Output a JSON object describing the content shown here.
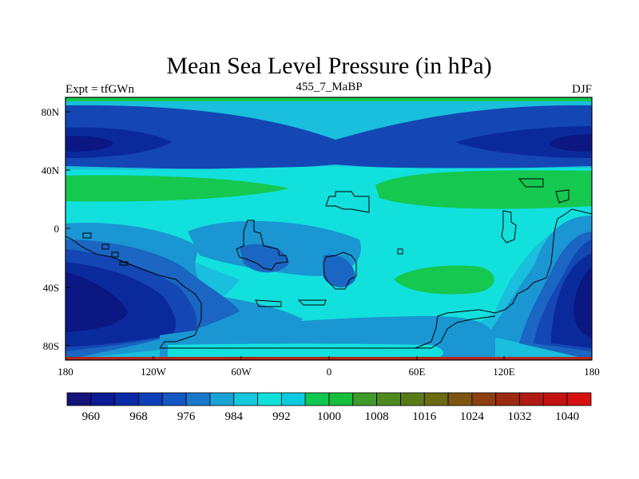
{
  "title": "Mean Sea Level Pressure (in hPa)",
  "left_label": "Expt = tfGWn",
  "center_label": "455_7_MaBP",
  "right_label": "DJF",
  "lat_ticks": [
    "80N",
    "40N",
    "0",
    "40S",
    "80S"
  ],
  "lon_ticks": [
    "180",
    "120W",
    "60W",
    "0",
    "60E",
    "120E",
    "180"
  ],
  "colorbar": {
    "labels": [
      "960",
      "968",
      "976",
      "984",
      "992",
      "1000",
      "1008",
      "1016",
      "1024",
      "1032",
      "1040"
    ],
    "colors": [
      "#15127a",
      "#0a1a95",
      "#0a2aa8",
      "#0d3fba",
      "#1357c2",
      "#1a78cc",
      "#18a2d6",
      "#14c8dd",
      "#0fe0da",
      "#0ccae0",
      "#0fc84f",
      "#16bf3c",
      "#3f9a2a",
      "#4f8a1e",
      "#5a7a18",
      "#6b6b14",
      "#7d5512",
      "#8c3f10",
      "#9c2a10",
      "#b01a12",
      "#c41212",
      "#d81010"
    ]
  },
  "palette": {
    "p964": "#0b1783",
    "p972": "#0a2a9c",
    "p980": "#1446b4",
    "p988": "#1a66c2",
    "p994": "#1a96d2",
    "p998": "#19bfdc",
    "p1002": "#12e0dd",
    "p1008": "#14c850",
    "red_strip": "#b02818"
  }
}
